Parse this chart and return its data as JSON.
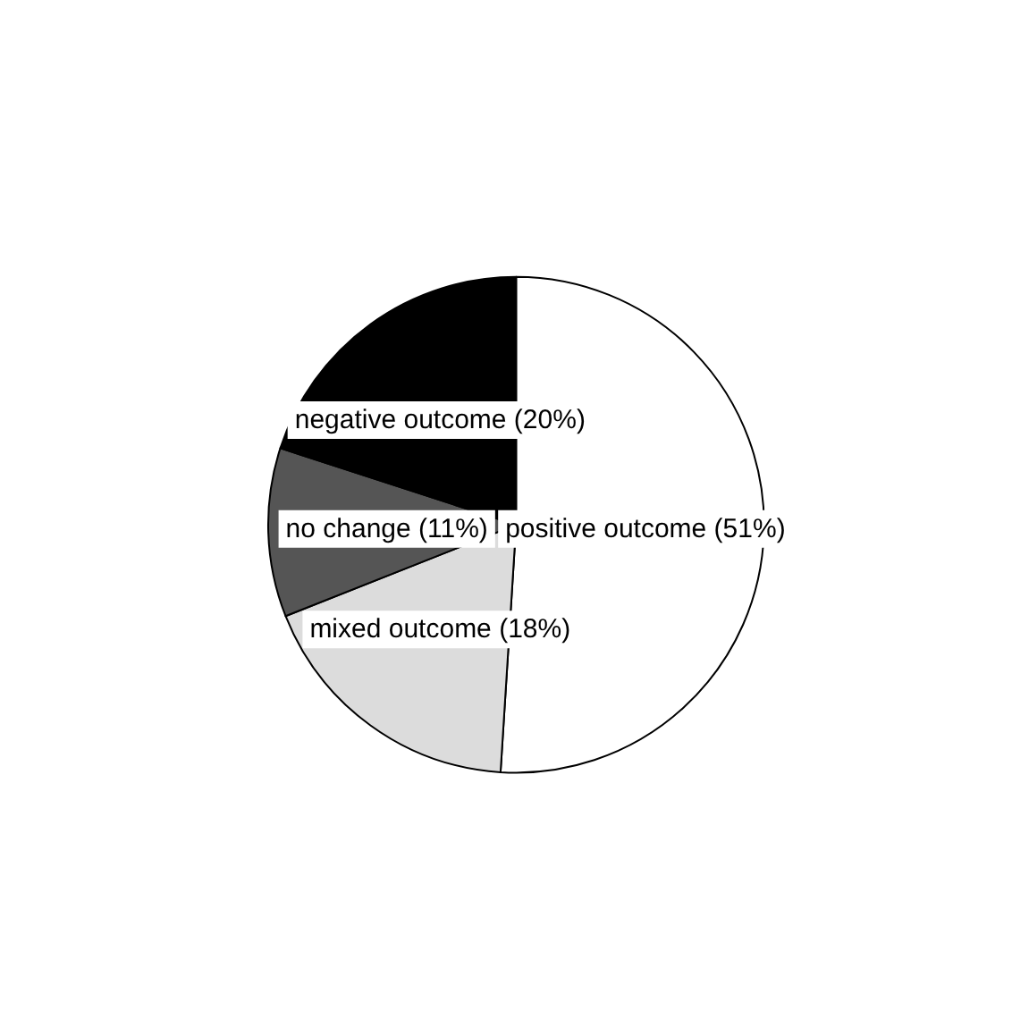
{
  "chart_data": {
    "type": "pie",
    "categories": [
      "positive outcome (51%)",
      "mixed outcome (18%)",
      "no change (11%)",
      "negative outcome (20%)"
    ],
    "values": [
      51,
      18,
      11,
      20
    ],
    "colors": [
      "#ffffff",
      "#dcdcdc",
      "#555555",
      "#000000"
    ]
  }
}
